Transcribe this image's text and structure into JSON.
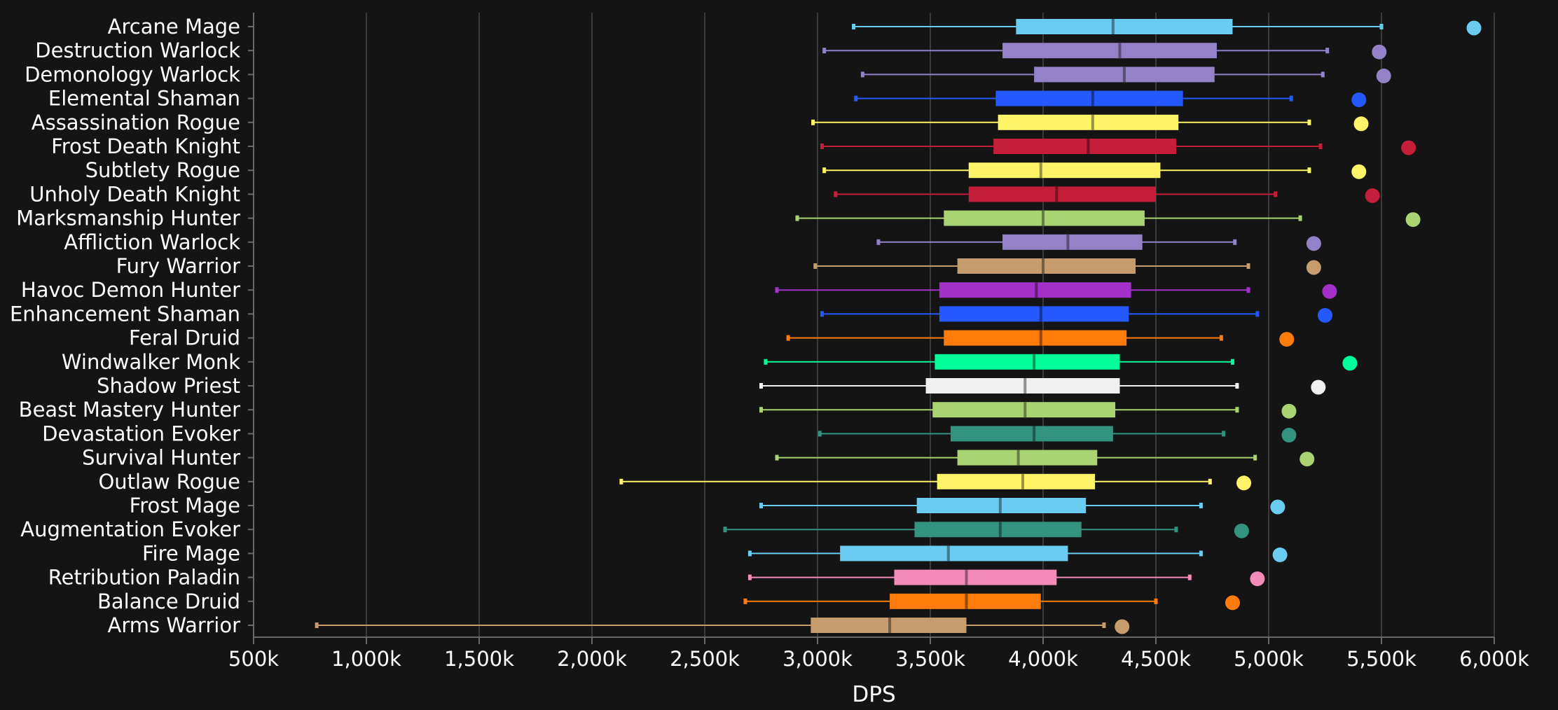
{
  "chart_data": {
    "type": "boxplot",
    "title": "",
    "xlabel": "DPS",
    "ylabel": "",
    "xlim": [
      500,
      6000
    ],
    "x_ticks": [
      500,
      1000,
      1500,
      2000,
      2500,
      3000,
      3500,
      4000,
      4500,
      5000,
      5500,
      6000
    ],
    "x_tick_labels": [
      "500k",
      "1,000k",
      "1,500k",
      "2,000k",
      "2,500k",
      "3,000k",
      "3,500k",
      "4,000k",
      "4,500k",
      "5,000k",
      "5,500k",
      "6,000k"
    ],
    "grid": true,
    "series": [
      {
        "name": "Arcane Mage",
        "color": "#69ccf0",
        "min": 3160,
        "q1": 3880,
        "median": 4310,
        "q3": 4840,
        "max": 5500,
        "outlier": 5910
      },
      {
        "name": "Destruction Warlock",
        "color": "#9482c9",
        "min": 3030,
        "q1": 3820,
        "median": 4340,
        "q3": 4770,
        "max": 5260,
        "outlier": 5490
      },
      {
        "name": "Demonology Warlock",
        "color": "#9482c9",
        "min": 3200,
        "q1": 3960,
        "median": 4360,
        "q3": 4760,
        "max": 5240,
        "outlier": 5510
      },
      {
        "name": "Elemental Shaman",
        "color": "#2359ff",
        "min": 3170,
        "q1": 3790,
        "median": 4220,
        "q3": 4620,
        "max": 5100,
        "outlier": 5400
      },
      {
        "name": "Assassination Rogue",
        "color": "#fff468",
        "min": 2980,
        "q1": 3800,
        "median": 4220,
        "q3": 4600,
        "max": 5180,
        "outlier": 5410
      },
      {
        "name": "Frost Death Knight",
        "color": "#c41e3a",
        "min": 3020,
        "q1": 3780,
        "median": 4200,
        "q3": 4590,
        "max": 5230,
        "outlier": 5620
      },
      {
        "name": "Subtlety Rogue",
        "color": "#fff468",
        "min": 3030,
        "q1": 3670,
        "median": 3990,
        "q3": 4520,
        "max": 5180,
        "outlier": 5400
      },
      {
        "name": "Unholy Death Knight",
        "color": "#c41e3a",
        "min": 3080,
        "q1": 3670,
        "median": 4060,
        "q3": 4500,
        "max": 5030,
        "outlier": 5460
      },
      {
        "name": "Marksmanship Hunter",
        "color": "#aad372",
        "min": 2910,
        "q1": 3560,
        "median": 4000,
        "q3": 4450,
        "max": 5140,
        "outlier": 5640
      },
      {
        "name": "Affliction Warlock",
        "color": "#9482c9",
        "min": 3270,
        "q1": 3820,
        "median": 4110,
        "q3": 4440,
        "max": 4850,
        "outlier": 5200
      },
      {
        "name": "Fury Warrior",
        "color": "#c69b6d",
        "min": 2990,
        "q1": 3620,
        "median": 4000,
        "q3": 4410,
        "max": 4910,
        "outlier": 5200
      },
      {
        "name": "Havoc Demon Hunter",
        "color": "#a330c9",
        "min": 2820,
        "q1": 3540,
        "median": 3970,
        "q3": 4390,
        "max": 4910,
        "outlier": 5270
      },
      {
        "name": "Enhancement Shaman",
        "color": "#2359ff",
        "min": 3020,
        "q1": 3540,
        "median": 3990,
        "q3": 4380,
        "max": 4950,
        "outlier": 5250
      },
      {
        "name": "Feral Druid",
        "color": "#ff7c0a",
        "min": 2870,
        "q1": 3560,
        "median": 3990,
        "q3": 4370,
        "max": 4790,
        "outlier": 5080
      },
      {
        "name": "Windwalker Monk",
        "color": "#00ff98",
        "min": 2770,
        "q1": 3520,
        "median": 3960,
        "q3": 4340,
        "max": 4840,
        "outlier": 5360
      },
      {
        "name": "Shadow Priest",
        "color": "#f0f0f0",
        "min": 2750,
        "q1": 3480,
        "median": 3920,
        "q3": 4340,
        "max": 4860,
        "outlier": 5220
      },
      {
        "name": "Beast Mastery Hunter",
        "color": "#aad372",
        "min": 2750,
        "q1": 3510,
        "median": 3920,
        "q3": 4320,
        "max": 4860,
        "outlier": 5090
      },
      {
        "name": "Devastation Evoker",
        "color": "#33937f",
        "min": 3010,
        "q1": 3590,
        "median": 3960,
        "q3": 4310,
        "max": 4800,
        "outlier": 5090
      },
      {
        "name": "Survival Hunter",
        "color": "#aad372",
        "min": 2820,
        "q1": 3620,
        "median": 3890,
        "q3": 4240,
        "max": 4940,
        "outlier": 5170
      },
      {
        "name": "Outlaw Rogue",
        "color": "#fff468",
        "min": 2130,
        "q1": 3530,
        "median": 3910,
        "q3": 4230,
        "max": 4740,
        "outlier": 4890
      },
      {
        "name": "Frost Mage",
        "color": "#69ccf0",
        "min": 2750,
        "q1": 3440,
        "median": 3810,
        "q3": 4190,
        "max": 4700,
        "outlier": 5040
      },
      {
        "name": "Augmentation Evoker",
        "color": "#33937f",
        "min": 2590,
        "q1": 3430,
        "median": 3810,
        "q3": 4170,
        "max": 4590,
        "outlier": 4880
      },
      {
        "name": "Fire Mage",
        "color": "#69ccf0",
        "min": 2700,
        "q1": 3100,
        "median": 3580,
        "q3": 4110,
        "max": 4700,
        "outlier": 5050
      },
      {
        "name": "Retribution Paladin",
        "color": "#f48cba",
        "min": 2700,
        "q1": 3340,
        "median": 3660,
        "q3": 4060,
        "max": 4650,
        "outlier": 4950
      },
      {
        "name": "Balance Druid",
        "color": "#ff7c0a",
        "min": 2680,
        "q1": 3320,
        "median": 3660,
        "q3": 3990,
        "max": 4500,
        "outlier": 4840
      },
      {
        "name": "Arms Warrior",
        "color": "#c69b6d",
        "min": 780,
        "q1": 2970,
        "median": 3320,
        "q3": 3660,
        "max": 4270,
        "outlier": 4350
      }
    ]
  }
}
